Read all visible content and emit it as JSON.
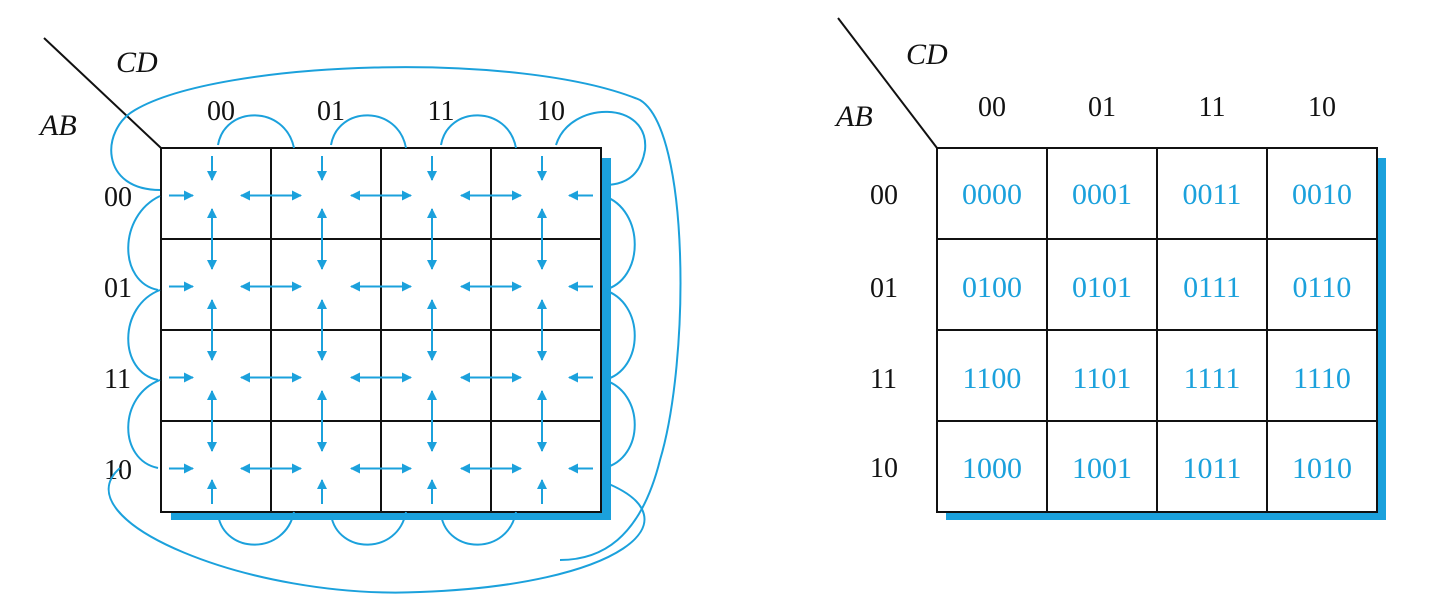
{
  "colors": {
    "accent": "#1BA1DC",
    "ink": "#111111",
    "background": "#ffffff"
  },
  "left_map": {
    "row_var": "AB",
    "col_var": "CD",
    "col_labels": [
      "00",
      "01",
      "11",
      "10"
    ],
    "row_labels": [
      "00",
      "01",
      "11",
      "10"
    ],
    "adjacency": "each cell connected by arrows to its horizontal and vertical neighbours, with wrap-around loops between first and last columns and between first and last rows"
  },
  "right_map": {
    "row_var": "AB",
    "col_var": "CD",
    "col_labels": [
      "00",
      "01",
      "11",
      "10"
    ],
    "row_labels": [
      "00",
      "01",
      "11",
      "10"
    ],
    "cells": [
      [
        "0000",
        "0001",
        "0011",
        "0010"
      ],
      [
        "0100",
        "0101",
        "0111",
        "0110"
      ],
      [
        "1100",
        "1101",
        "1111",
        "1110"
      ],
      [
        "1000",
        "1001",
        "1011",
        "1010"
      ]
    ]
  }
}
